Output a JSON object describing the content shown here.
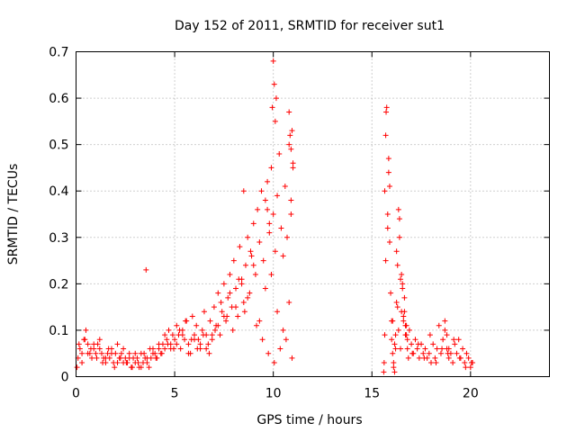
{
  "chart_data": {
    "type": "scatter",
    "title": "Day 152 of 2011, SRMTID for receiver sut1",
    "xlabel": "GPS time / hours",
    "ylabel": "SRMTID / TECUs",
    "xlim": [
      0,
      24
    ],
    "ylim": [
      0,
      0.7
    ],
    "xticks": [
      0,
      5,
      10,
      15,
      20
    ],
    "xtick_labels": [
      "0",
      "5",
      "10",
      "15",
      "20"
    ],
    "yticks": [
      0,
      0.1,
      0.2,
      0.3,
      0.4,
      0.5,
      0.6,
      0.7
    ],
    "ytick_labels": [
      "0",
      "0.1",
      "0.2",
      "0.3",
      "0.4",
      "0.5",
      "0.6",
      "0.7"
    ],
    "grid": true,
    "marker": "plus",
    "color": "#ff0000",
    "series": [
      {
        "name": "sut1",
        "x": [
          0.05,
          0.1,
          0.2,
          0.3,
          0.4,
          0.5,
          0.6,
          0.7,
          0.8,
          0.9,
          1.0,
          1.1,
          1.2,
          1.3,
          1.4,
          1.5,
          1.6,
          1.7,
          1.8,
          1.9,
          2.0,
          2.1,
          2.2,
          2.3,
          2.4,
          2.5,
          2.6,
          2.7,
          2.8,
          2.9,
          3.0,
          3.1,
          3.2,
          3.3,
          3.4,
          3.5,
          3.6,
          3.7,
          3.8,
          3.9,
          4.0,
          4.1,
          4.2,
          4.3,
          4.4,
          4.5,
          4.6,
          4.7,
          4.8,
          4.9,
          5.0,
          5.1,
          5.2,
          5.3,
          5.4,
          5.5,
          5.6,
          5.7,
          5.8,
          5.9,
          6.0,
          6.1,
          6.2,
          6.3,
          6.4,
          6.5,
          6.6,
          6.7,
          6.8,
          6.9,
          7.0,
          7.1,
          7.2,
          7.3,
          7.4,
          7.5,
          7.6,
          7.7,
          7.8,
          7.9,
          8.0,
          8.1,
          8.2,
          8.3,
          8.4,
          8.5,
          8.6,
          8.7,
          8.8,
          8.9,
          9.0,
          9.1,
          9.2,
          9.3,
          9.4,
          9.5,
          9.6,
          9.7,
          9.8,
          9.9,
          10.0,
          10.1,
          10.2,
          10.3,
          10.4,
          10.5,
          10.6,
          10.7,
          10.8,
          10.9,
          11.0,
          0.3,
          0.6,
          0.9,
          1.2,
          1.5,
          1.8,
          2.1,
          2.4,
          2.7,
          3.0,
          3.3,
          3.6,
          3.9,
          4.2,
          4.5,
          4.8,
          5.1,
          5.4,
          5.7,
          6.0,
          6.3,
          6.6,
          6.9,
          7.2,
          7.5,
          7.8,
          8.1,
          8.4,
          8.7,
          9.0,
          9.3,
          9.6,
          9.9,
          10.2,
          10.5,
          10.8,
          0.15,
          0.45,
          0.75,
          1.05,
          1.35,
          1.65,
          1.95,
          2.25,
          2.55,
          2.85,
          3.15,
          3.45,
          3.75,
          4.05,
          4.35,
          4.65,
          4.95,
          5.25,
          5.55,
          5.85,
          6.15,
          6.45,
          6.75,
          7.05,
          7.35,
          7.65,
          7.95,
          8.25,
          8.55,
          8.85,
          9.15,
          9.45,
          9.75,
          10.05,
          10.35,
          10.65,
          10.95,
          3.55,
          9.95,
          10.0,
          10.05,
          10.1,
          10.15,
          10.8,
          10.85,
          10.9,
          10.95,
          11.0,
          10.9,
          9.8,
          9.7,
          8.5,
          15.6,
          15.62,
          15.65,
          15.7,
          15.75,
          15.8,
          15.85,
          15.9,
          15.95,
          16.0,
          16.05,
          16.1,
          16.15,
          16.2,
          16.25,
          16.3,
          16.35,
          16.4,
          16.45,
          16.5,
          16.55,
          16.6,
          16.65,
          16.7,
          16.75,
          16.8,
          16.9,
          17.0,
          17.1,
          17.2,
          17.3,
          17.4,
          17.5,
          17.6,
          17.7,
          17.8,
          17.9,
          18.0,
          18.1,
          18.2,
          18.3,
          18.4,
          18.5,
          18.6,
          18.7,
          18.8,
          18.9,
          19.0,
          19.1,
          19.2,
          19.3,
          19.4,
          19.5,
          19.6,
          19.7,
          19.8,
          19.9,
          20.0,
          20.1,
          15.7,
          15.8,
          15.9,
          16.0,
          16.1,
          16.2,
          16.3,
          16.4,
          16.5,
          16.6,
          16.7,
          16.8,
          17.05,
          17.35,
          17.65,
          17.95,
          18.25,
          18.55,
          18.85,
          19.15,
          19.45,
          19.75,
          20.05,
          15.65,
          15.72,
          15.85,
          16.05,
          16.15,
          16.25,
          16.35,
          16.45,
          16.55,
          16.65,
          16.75,
          16.85,
          18.7,
          18.8,
          18.9
        ],
        "y": [
          0.02,
          0.04,
          0.06,
          0.05,
          0.08,
          0.1,
          0.07,
          0.05,
          0.04,
          0.06,
          0.05,
          0.07,
          0.08,
          0.05,
          0.04,
          0.03,
          0.05,
          0.04,
          0.06,
          0.03,
          0.05,
          0.07,
          0.04,
          0.05,
          0.03,
          0.04,
          0.03,
          0.05,
          0.02,
          0.04,
          0.03,
          0.04,
          0.02,
          0.05,
          0.03,
          0.04,
          0.03,
          0.02,
          0.04,
          0.06,
          0.05,
          0.04,
          0.06,
          0.05,
          0.07,
          0.06,
          0.08,
          0.1,
          0.07,
          0.09,
          0.08,
          0.11,
          0.09,
          0.06,
          0.1,
          0.08,
          0.12,
          0.07,
          0.05,
          0.13,
          0.09,
          0.11,
          0.08,
          0.06,
          0.1,
          0.14,
          0.09,
          0.07,
          0.12,
          0.08,
          0.15,
          0.11,
          0.18,
          0.09,
          0.14,
          0.2,
          0.12,
          0.17,
          0.22,
          0.15,
          0.25,
          0.19,
          0.13,
          0.28,
          0.21,
          0.16,
          0.24,
          0.3,
          0.18,
          0.26,
          0.33,
          0.22,
          0.36,
          0.29,
          0.4,
          0.25,
          0.38,
          0.42,
          0.31,
          0.45,
          0.35,
          0.27,
          0.39,
          0.48,
          0.32,
          0.26,
          0.41,
          0.3,
          0.5,
          0.35,
          0.45,
          0.03,
          0.05,
          0.07,
          0.06,
          0.04,
          0.05,
          0.03,
          0.06,
          0.04,
          0.05,
          0.02,
          0.04,
          0.05,
          0.07,
          0.09,
          0.06,
          0.07,
          0.09,
          0.05,
          0.08,
          0.07,
          0.06,
          0.09,
          0.11,
          0.13,
          0.18,
          0.15,
          0.2,
          0.17,
          0.24,
          0.12,
          0.19,
          0.22,
          0.14,
          0.1,
          0.16,
          0.07,
          0.08,
          0.06,
          0.04,
          0.03,
          0.06,
          0.02,
          0.04,
          0.03,
          0.02,
          0.03,
          0.05,
          0.06,
          0.04,
          0.05,
          0.07,
          0.06,
          0.1,
          0.12,
          0.08,
          0.06,
          0.09,
          0.05,
          0.1,
          0.16,
          0.13,
          0.1,
          0.21,
          0.14,
          0.27,
          0.11,
          0.08,
          0.05,
          0.03,
          0.06,
          0.08,
          0.04,
          0.23,
          0.58,
          0.68,
          0.63,
          0.55,
          0.6,
          0.57,
          0.52,
          0.49,
          0.53,
          0.46,
          0.38,
          0.33,
          0.36,
          0.4,
          0.01,
          0.03,
          0.09,
          0.52,
          0.58,
          0.35,
          0.44,
          0.29,
          0.18,
          0.12,
          0.05,
          0.02,
          0.07,
          0.09,
          0.16,
          0.24,
          0.36,
          0.3,
          0.21,
          0.14,
          0.19,
          0.12,
          0.17,
          0.09,
          0.11,
          0.08,
          0.1,
          0.07,
          0.05,
          0.08,
          0.06,
          0.04,
          0.07,
          0.05,
          0.06,
          0.04,
          0.05,
          0.03,
          0.07,
          0.04,
          0.06,
          0.11,
          0.05,
          0.08,
          0.12,
          0.06,
          0.04,
          0.05,
          0.03,
          0.07,
          0.05,
          0.08,
          0.04,
          0.06,
          0.03,
          0.05,
          0.04,
          0.02,
          0.03,
          0.25,
          0.32,
          0.41,
          0.08,
          0.03,
          0.06,
          0.15,
          0.34,
          0.22,
          0.13,
          0.11,
          0.06,
          0.05,
          0.07,
          0.04,
          0.09,
          0.03,
          0.06,
          0.05,
          0.08,
          0.04,
          0.02,
          0.03,
          0.4,
          0.57,
          0.47,
          0.12,
          0.01,
          0.27,
          0.1,
          0.06,
          0.2,
          0.14,
          0.09,
          0.04,
          0.1,
          0.09,
          0.06
        ]
      }
    ]
  }
}
